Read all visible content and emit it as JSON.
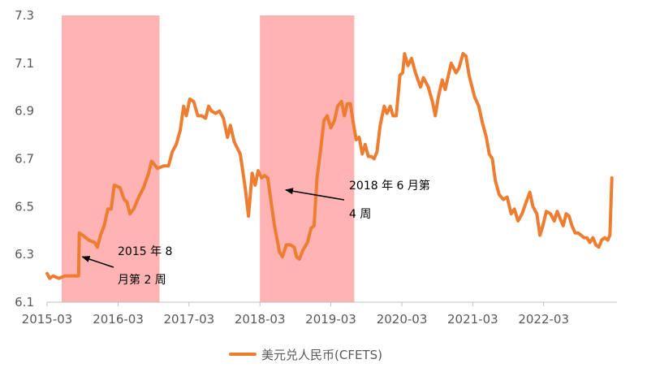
{
  "chart_data": {
    "type": "line",
    "title": "",
    "xlabel": "",
    "ylabel": "",
    "ylim": [
      6.1,
      7.3
    ],
    "yticks": [
      "6.1",
      "6.3",
      "6.5",
      "6.7",
      "6.9",
      "7.1",
      "7.3"
    ],
    "xticks": [
      "2015-03",
      "2016-03",
      "2017-03",
      "2018-03",
      "2019-03",
      "2020-03",
      "2021-03",
      "2022-03"
    ],
    "grid": false,
    "legend_position": "bottom",
    "shaded_ranges": [
      {
        "start": "2015-05-15",
        "end": "2016-09-30",
        "color": "#ffb3b3"
      },
      {
        "start": "2018-03-01",
        "end": "2019-06-30",
        "color": "#ffb3b3"
      }
    ],
    "annotations": [
      {
        "lines": [
          "2015 年 8",
          "月第 2 周"
        ],
        "arrow_to": {
          "x": "2015-08-13",
          "y": 6.29
        }
      },
      {
        "lines": [
          "2018 年 6 月第",
          "4 周"
        ],
        "arrow_to": {
          "x": "2018-06-25",
          "y": 6.57
        }
      }
    ],
    "series": [
      {
        "name": "美元兑人民币(CFETS)",
        "color": "#ed7d31",
        "points": [
          [
            "2015-03-01",
            6.22
          ],
          [
            "2015-03-15",
            6.2
          ],
          [
            "2015-04-01",
            6.21
          ],
          [
            "2015-05-01",
            6.2
          ],
          [
            "2015-06-01",
            6.21
          ],
          [
            "2015-08-01",
            6.21
          ],
          [
            "2015-08-10",
            6.21
          ],
          [
            "2015-08-14",
            6.39
          ],
          [
            "2015-09-01",
            6.38
          ],
          [
            "2015-10-01",
            6.36
          ],
          [
            "2015-11-01",
            6.35
          ],
          [
            "2015-11-15",
            6.33
          ],
          [
            "2015-12-01",
            6.38
          ],
          [
            "2015-12-20",
            6.42
          ],
          [
            "2016-01-08",
            6.49
          ],
          [
            "2016-01-25",
            6.49
          ],
          [
            "2016-02-10",
            6.59
          ],
          [
            "2016-03-10",
            6.58
          ],
          [
            "2016-04-01",
            6.53
          ],
          [
            "2016-04-15",
            6.52
          ],
          [
            "2016-05-01",
            6.47
          ],
          [
            "2016-05-20",
            6.49
          ],
          [
            "2016-06-15",
            6.54
          ],
          [
            "2016-07-10",
            6.58
          ],
          [
            "2016-08-05",
            6.64
          ],
          [
            "2016-08-20",
            6.69
          ],
          [
            "2016-09-20",
            6.66
          ],
          [
            "2016-10-20",
            6.67
          ],
          [
            "2016-11-15",
            6.67
          ],
          [
            "2016-12-05",
            6.73
          ],
          [
            "2016-12-25",
            6.76
          ],
          [
            "2017-01-15",
            6.82
          ],
          [
            "2017-02-01",
            6.92
          ],
          [
            "2017-02-15",
            6.88
          ],
          [
            "2017-03-05",
            6.95
          ],
          [
            "2017-03-25",
            6.94
          ],
          [
            "2017-04-15",
            6.88
          ],
          [
            "2017-05-05",
            6.88
          ],
          [
            "2017-05-25",
            6.87
          ],
          [
            "2017-06-10",
            6.92
          ],
          [
            "2017-06-25",
            6.9
          ],
          [
            "2017-07-15",
            6.89
          ],
          [
            "2017-08-05",
            6.9
          ],
          [
            "2017-08-25",
            6.87
          ],
          [
            "2017-09-15",
            6.79
          ],
          [
            "2017-09-30",
            6.84
          ],
          [
            "2017-10-20",
            6.77
          ],
          [
            "2017-11-20",
            6.72
          ],
          [
            "2017-12-15",
            6.58
          ],
          [
            "2018-01-01",
            6.46
          ],
          [
            "2018-01-20",
            6.64
          ],
          [
            "2018-02-05",
            6.59
          ],
          [
            "2018-02-20",
            6.65
          ],
          [
            "2018-03-10",
            6.62
          ],
          [
            "2018-03-25",
            6.63
          ],
          [
            "2018-04-10",
            6.62
          ],
          [
            "2018-05-15",
            6.42
          ],
          [
            "2018-06-10",
            6.31
          ],
          [
            "2018-06-25",
            6.29
          ],
          [
            "2018-07-15",
            6.34
          ],
          [
            "2018-08-05",
            6.34
          ],
          [
            "2018-08-25",
            6.33
          ],
          [
            "2018-09-05",
            6.29
          ],
          [
            "2018-09-20",
            6.28
          ],
          [
            "2018-10-10",
            6.32
          ],
          [
            "2018-11-01",
            6.35
          ],
          [
            "2018-11-20",
            6.41
          ],
          [
            "2018-12-05",
            6.42
          ],
          [
            "2018-12-20",
            6.62
          ],
          [
            "2019-01-05",
            6.72
          ],
          [
            "2019-01-25",
            6.86
          ],
          [
            "2019-02-10",
            6.88
          ],
          [
            "2019-03-01",
            6.83
          ],
          [
            "2019-03-20",
            6.86
          ],
          [
            "2019-04-05",
            6.92
          ],
          [
            "2019-04-25",
            6.94
          ],
          [
            "2019-05-10",
            6.88
          ],
          [
            "2019-05-25",
            6.93
          ],
          [
            "2019-06-10",
            6.93
          ],
          [
            "2019-06-25",
            6.85
          ],
          [
            "2019-07-10",
            6.78
          ],
          [
            "2019-07-25",
            6.79
          ],
          [
            "2019-08-10",
            6.72
          ],
          [
            "2019-08-25",
            6.76
          ],
          [
            "2019-09-10",
            6.71
          ],
          [
            "2019-09-25",
            6.71
          ],
          [
            "2019-10-10",
            6.7
          ],
          [
            "2019-10-25",
            6.73
          ],
          [
            "2019-11-10",
            6.84
          ],
          [
            "2019-12-01",
            6.92
          ],
          [
            "2019-12-15",
            6.89
          ],
          [
            "2020-01-01",
            6.92
          ],
          [
            "2020-01-15",
            6.88
          ],
          [
            "2020-02-01",
            6.88
          ],
          [
            "2020-02-20",
            7.05
          ],
          [
            "2020-03-05",
            7.06
          ],
          [
            "2020-03-15",
            7.14
          ],
          [
            "2020-04-01",
            7.09
          ],
          [
            "2020-04-20",
            7.12
          ],
          [
            "2020-05-10",
            7.06
          ],
          [
            "2020-06-05",
            7.0
          ],
          [
            "2020-06-20",
            7.04
          ],
          [
            "2020-07-15",
            7.0
          ],
          [
            "2020-08-05",
            6.94
          ],
          [
            "2020-08-20",
            6.88
          ],
          [
            "2020-09-05",
            6.96
          ],
          [
            "2020-09-25",
            7.03
          ],
          [
            "2020-10-10",
            6.99
          ],
          [
            "2020-11-10",
            7.1
          ],
          [
            "2020-12-05",
            7.06
          ],
          [
            "2020-12-20",
            7.08
          ],
          [
            "2021-01-10",
            7.14
          ],
          [
            "2021-01-25",
            7.13
          ],
          [
            "2021-02-10",
            7.05
          ],
          [
            "2021-03-10",
            6.96
          ],
          [
            "2021-04-01",
            6.92
          ],
          [
            "2021-04-20",
            6.85
          ],
          [
            "2021-05-10",
            6.79
          ],
          [
            "2021-05-25",
            6.72
          ],
          [
            "2021-06-10",
            6.7
          ],
          [
            "2021-06-25",
            6.61
          ],
          [
            "2021-07-15",
            6.55
          ],
          [
            "2021-08-05",
            6.53
          ],
          [
            "2021-08-25",
            6.54
          ],
          [
            "2021-09-15",
            6.47
          ],
          [
            "2021-10-01",
            6.49
          ],
          [
            "2021-10-20",
            6.44
          ],
          [
            "2021-11-10",
            6.47
          ],
          [
            "2021-12-01",
            6.52
          ],
          [
            "2021-12-20",
            6.56
          ],
          [
            "2022-01-05",
            6.5
          ],
          [
            "2022-01-25",
            6.47
          ],
          [
            "2022-02-10",
            6.38
          ],
          [
            "2022-02-25",
            6.42
          ],
          [
            "2022-03-15",
            6.48
          ],
          [
            "2022-04-05",
            6.47
          ],
          [
            "2022-04-25",
            6.44
          ],
          [
            "2022-05-10",
            6.48
          ],
          [
            "2022-05-25",
            6.45
          ],
          [
            "2022-06-10",
            6.42
          ],
          [
            "2022-06-25",
            6.47
          ],
          [
            "2022-07-10",
            6.46
          ],
          [
            "2022-07-25",
            6.42
          ],
          [
            "2022-08-10",
            6.39
          ],
          [
            "2022-08-25",
            6.39
          ],
          [
            "2022-09-10",
            6.38
          ],
          [
            "2022-09-25",
            6.37
          ],
          [
            "2022-10-10",
            6.37
          ],
          [
            "2022-10-25",
            6.35
          ],
          [
            "2022-11-10",
            6.37
          ],
          [
            "2022-11-25",
            6.34
          ],
          [
            "2022-12-10",
            6.33
          ],
          [
            "2022-12-25",
            6.36
          ],
          [
            "2023-01-10",
            6.37
          ],
          [
            "2023-01-25",
            6.36
          ],
          [
            "2023-02-05",
            6.38
          ],
          [
            "2023-02-15",
            6.62
          ]
        ]
      }
    ]
  }
}
